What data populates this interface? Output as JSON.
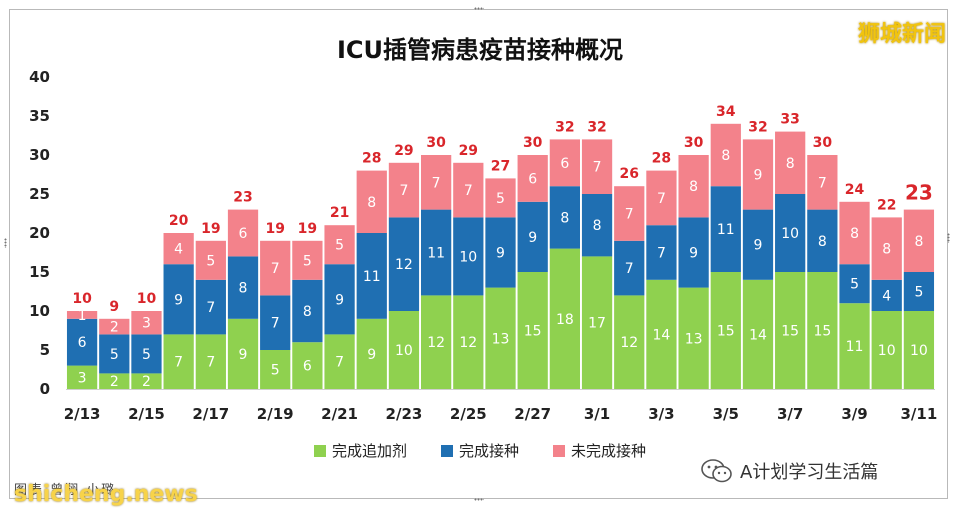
{
  "header": {
    "title": "ICU插管病患疫苗接种概况",
    "brand": "狮城新闻"
  },
  "footer": {
    "wechat_account": "A计划学习生活篇",
    "source": "图表  曾翔 小璐",
    "watermark": "shicheng.news"
  },
  "colors": {
    "booster": "#8fd14f",
    "vaccinated": "#1f6fb2",
    "unvaccinated": "#f3828b",
    "total_label": "#d9262b",
    "brand": "#f1c40f"
  },
  "chart_data": {
    "type": "bar",
    "stacked": true,
    "title": "ICU插管病患疫苗接种概况",
    "xlabel": "",
    "ylabel": "",
    "ylim": [
      0,
      40
    ],
    "yticks": [
      0,
      5,
      10,
      15,
      20,
      25,
      30,
      35,
      40
    ],
    "grid": false,
    "legend_position": "bottom",
    "categories": [
      "2/13",
      "2/14",
      "2/15",
      "2/16",
      "2/17",
      "2/18",
      "2/19",
      "2/20",
      "2/21",
      "2/22",
      "2/23",
      "2/24",
      "2/25",
      "2/26",
      "2/27",
      "2/28",
      "3/1",
      "3/2",
      "3/3",
      "3/4",
      "3/5",
      "3/6",
      "3/7",
      "3/8",
      "3/9",
      "3/10",
      "3/11"
    ],
    "xtick_labels": [
      "2/13",
      "",
      "2/15",
      "",
      "2/17",
      "",
      "2/19",
      "",
      "2/21",
      "",
      "2/23",
      "",
      "2/25",
      "",
      "2/27",
      "",
      "3/1",
      "",
      "3/3",
      "",
      "3/5",
      "",
      "3/7",
      "",
      "3/9",
      "",
      "3/11"
    ],
    "series": [
      {
        "name": "完成追加剂",
        "color": "#8fd14f",
        "values": [
          3,
          2,
          2,
          7,
          7,
          9,
          5,
          6,
          7,
          9,
          10,
          12,
          12,
          13,
          15,
          18,
          17,
          12,
          14,
          13,
          15,
          14,
          15,
          15,
          11,
          10,
          10
        ]
      },
      {
        "name": "完成接种",
        "color": "#1f6fb2",
        "values": [
          6,
          5,
          5,
          9,
          7,
          8,
          7,
          8,
          9,
          11,
          12,
          11,
          10,
          9,
          9,
          8,
          8,
          7,
          7,
          9,
          11,
          9,
          10,
          8,
          5,
          4,
          5
        ]
      },
      {
        "name": "未完成接种",
        "color": "#f3828b",
        "values": [
          1,
          2,
          3,
          4,
          5,
          6,
          7,
          5,
          5,
          8,
          7,
          7,
          7,
          5,
          6,
          6,
          7,
          7,
          7,
          8,
          8,
          9,
          8,
          7,
          8,
          8,
          8
        ]
      }
    ],
    "totals": [
      10,
      9,
      10,
      20,
      19,
      23,
      19,
      19,
      21,
      28,
      29,
      30,
      29,
      27,
      30,
      32,
      32,
      26,
      28,
      30,
      34,
      32,
      33,
      30,
      24,
      22,
      23
    ]
  }
}
